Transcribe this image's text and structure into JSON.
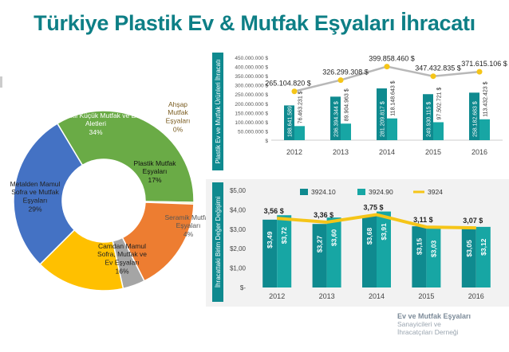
{
  "page": {
    "title": "Türkiye Plastik Ev & Mutfak Eşyaları İhracatı",
    "logo_line1": "Ev ve Mutfak Eşyaları",
    "logo_line2": "Sanayicileri ve",
    "logo_line3": "İhracatçıları Derneği"
  },
  "chart_data": [
    {
      "type": "pie",
      "variant": "donut",
      "slices": [
        {
          "label": "Elektrikli Küçük Mutfak ve Ev Aletleri",
          "pct_label": "34%",
          "value": 34,
          "color": "#6aab46"
        },
        {
          "label": "Ahşap Mutfak Eşyaları",
          "pct_label": "0%",
          "value": 0.3,
          "color": "#e8d84f"
        },
        {
          "label": "Plastik Mutfak Eşyaları",
          "pct_label": "17%",
          "value": 17,
          "color": "#ed7d31"
        },
        {
          "label": "Seramik Mutfak Eşyaları",
          "pct_label": "4%",
          "value": 4,
          "color": "#a5a5a5"
        },
        {
          "label": "Camdan Mamul Sofra, Mutfak ve Ev Eşyaları",
          "pct_label": "16%",
          "value": 16,
          "color": "#ffc000"
        },
        {
          "label": "Metalden Mamul Sofra ve Mutfak Eşyaları",
          "pct_label": "29%",
          "value": 29,
          "color": "#4472c4"
        }
      ]
    },
    {
      "type": "bar",
      "ylabel": "Plastik Ev ve Mutfak Ürünleri İhracatı",
      "categories": [
        "2012",
        "2013",
        "2014",
        "2015",
        "2016"
      ],
      "ylim": [
        0,
        450000000
      ],
      "yticks": [
        "$",
        "50.000.000 $",
        "100.000.000 $",
        "150.000.000 $",
        "200.000.000 $",
        "250.000.000 $",
        "300.000.000 $",
        "350.000.000 $",
        "400.000.000 $",
        "450.000.000 $"
      ],
      "series": [
        {
          "values": [
            188641589,
            236394344,
            281209817,
            249930115,
            258182683
          ],
          "labels": [
            "188.641.589",
            "236.394.344 $",
            "281.209.817 $",
            "249.930.115 $",
            "258.182.683 $"
          ],
          "color": "#0f8a8f"
        },
        {
          "values": [
            76463231,
            89904963,
            118148643,
            97502721,
            113432423
          ],
          "labels": [
            "76.463.231 $",
            "89.904.963 $",
            "118.148.643 $",
            "97.502.721 $",
            "113.432.423 $"
          ],
          "color": "#17a6a4"
        }
      ],
      "line": {
        "values": [
          265104820,
          326299308,
          399858460,
          347432835,
          371615106
        ],
        "labels": [
          "265.104.820 $",
          "326.299.308 $",
          "399.858.460 $",
          "347.432.835 $",
          "371.615.106 $"
        ],
        "color": "#b8b8b8"
      }
    },
    {
      "type": "bar",
      "ylabel": "İhracattaki Birim Değer Değişimi",
      "categories": [
        "2012",
        "2013",
        "2014",
        "2015",
        "2016"
      ],
      "ylim": [
        0,
        5
      ],
      "yticks": [
        "$-",
        "$1,00",
        "$2,00",
        "$3,00",
        "$4,00",
        "$5,00"
      ],
      "series": [
        {
          "name": "3924.10",
          "values": [
            3.49,
            3.27,
            3.68,
            3.15,
            3.05
          ],
          "labels": [
            "$3,49",
            "$3,27",
            "$3,68",
            "$3,15",
            "$3,05"
          ],
          "color": "#0f8a8f"
        },
        {
          "name": "3924.90",
          "values": [
            3.72,
            3.6,
            3.91,
            3.03,
            3.12
          ],
          "labels": [
            "$3,72",
            "$3,60",
            "$3,91",
            "$3,03",
            "$3,12"
          ],
          "color": "#17a6a4"
        }
      ],
      "line": {
        "name": "3924",
        "values": [
          3.56,
          3.36,
          3.75,
          3.11,
          3.07
        ],
        "labels": [
          "3,56 $",
          "3,36 $",
          "3,75 $",
          "3,11 $",
          "3,07 $"
        ],
        "color": "#f5c518"
      }
    }
  ]
}
